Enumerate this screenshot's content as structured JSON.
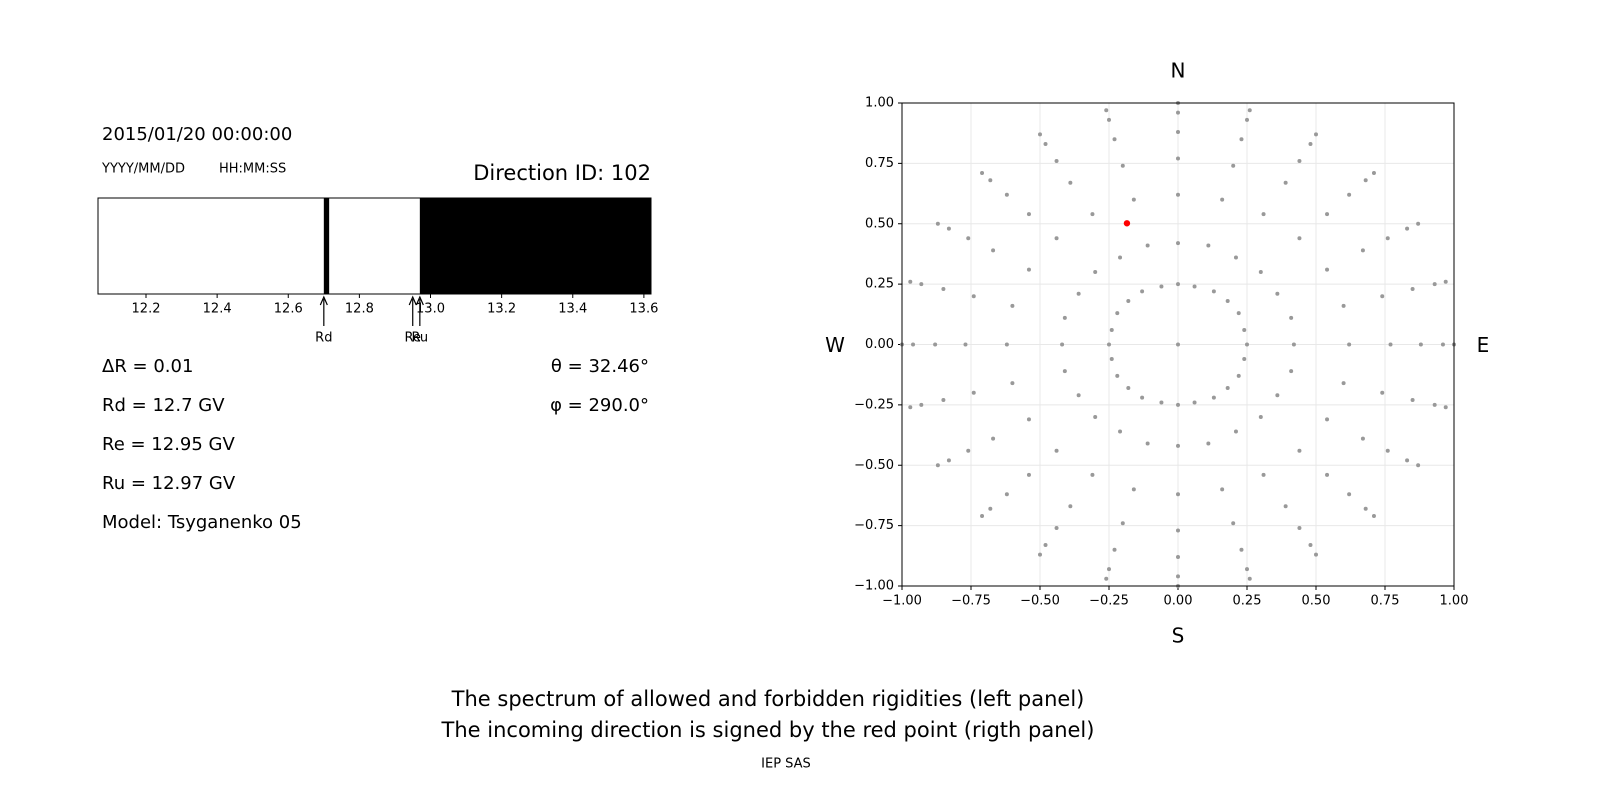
{
  "header": {
    "datetime": "2015/01/20 00:00:00",
    "date_format": "YYYY/MM/DD",
    "time_format": "HH:MM:SS",
    "direction": "Direction ID: 102"
  },
  "info": {
    "left": [
      "ΔR = 0.01",
      "Rd = 12.7 GV",
      "Re = 12.95 GV",
      "Ru = 12.97 GV",
      "Model: Tsyganenko 05"
    ],
    "right": [
      "θ = 32.46°",
      "φ = 290.0°"
    ]
  },
  "chart_data": [
    {
      "type": "broken_bar",
      "xlim": [
        12.065,
        13.62
      ],
      "xticks": [
        12.2,
        12.4,
        12.6,
        12.8,
        {
          "value": 13,
          "label": "13.0"
        },
        13.2,
        13.4,
        13.6
      ],
      "color": "#000000",
      "segments": [
        {
          "start": 12.7,
          "end": 12.715
        },
        {
          "start": 12.97,
          "end": 13.62
        }
      ],
      "markers": [
        {
          "label": "Rd",
          "value": 12.7
        },
        {
          "label": "Re",
          "value": 12.95
        },
        {
          "label": "Ru",
          "value": 12.97
        }
      ]
    },
    {
      "type": "scatter",
      "xlim": [
        -1,
        1
      ],
      "ylim": [
        -1,
        1
      ],
      "grid": true,
      "xticks": [
        {
          "value": -1,
          "label": "−1.00"
        },
        {
          "value": -0.75,
          "label": "−0.75"
        },
        {
          "value": -0.5,
          "label": "−0.50"
        },
        {
          "value": -0.25,
          "label": "−0.25"
        },
        {
          "value": 0,
          "label": "0.00"
        },
        {
          "value": 0.25,
          "label": "0.25"
        },
        {
          "value": 0.5,
          "label": "0.50"
        },
        {
          "value": 0.75,
          "label": "0.75"
        },
        {
          "value": 1,
          "label": "1.00"
        }
      ],
      "yticks": [
        {
          "value": -1,
          "label": "−1.00"
        },
        {
          "value": -0.75,
          "label": "−0.75"
        },
        {
          "value": -0.5,
          "label": "−0.50"
        },
        {
          "value": -0.25,
          "label": "−0.25"
        },
        {
          "value": 0,
          "label": "0.00"
        },
        {
          "value": 0.25,
          "label": "0.25"
        },
        {
          "value": 0.5,
          "label": "0.50"
        },
        {
          "value": 0.75,
          "label": "0.75"
        },
        {
          "value": 1,
          "label": "1.00"
        }
      ],
      "compass": {
        "north": "N",
        "south": "S",
        "west": "W",
        "east": "E"
      },
      "series": [
        {
          "color": "#999999",
          "x": [
            0,
            0.25,
            0.24,
            0.22,
            0.18,
            0.13,
            0.06,
            0,
            -0.06,
            -0.13,
            -0.18,
            -0.22,
            -0.24,
            -0.25,
            -0.24,
            -0.22,
            -0.18,
            -0.13,
            -0.06,
            0,
            0.06,
            0.13,
            0.18,
            0.22,
            0.24,
            0.42,
            0.41,
            0.36,
            0.3,
            0.21,
            0.11,
            0,
            -0.11,
            -0.21,
            -0.3,
            -0.36,
            -0.41,
            -0.42,
            -0.41,
            -0.36,
            -0.3,
            -0.21,
            -0.11,
            0,
            0.11,
            0.21,
            0.3,
            0.36,
            0.41,
            0.62,
            0.6,
            0.54,
            0.44,
            0.31,
            0.16,
            0,
            -0.16,
            -0.31,
            -0.44,
            -0.54,
            -0.6,
            -0.62,
            -0.6,
            -0.54,
            -0.44,
            -0.31,
            -0.16,
            0,
            0.16,
            0.31,
            0.44,
            0.54,
            0.6,
            0.77,
            0.74,
            0.67,
            0.54,
            0.39,
            0.2,
            0,
            -0.2,
            -0.39,
            -0.54,
            -0.67,
            -0.74,
            -0.77,
            -0.74,
            -0.67,
            -0.54,
            -0.39,
            -0.2,
            0,
            0.2,
            0.39,
            0.54,
            0.67,
            0.74,
            0.88,
            0.85,
            0.76,
            0.62,
            0.44,
            0.23,
            0,
            -0.23,
            -0.44,
            -0.62,
            -0.76,
            -0.85,
            -0.88,
            -0.85,
            -0.76,
            -0.62,
            -0.44,
            -0.23,
            0,
            0.23,
            0.44,
            0.62,
            0.76,
            0.85,
            0.96,
            0.93,
            0.83,
            0.68,
            0.48,
            0.25,
            0,
            -0.25,
            -0.48,
            -0.68,
            -0.83,
            -0.93,
            -0.96,
            -0.93,
            -0.83,
            -0.68,
            -0.48,
            -0.25,
            0,
            0.25,
            0.48,
            0.68,
            0.83,
            0.93,
            1,
            0.97,
            0.87,
            0.71,
            0.5,
            0.26,
            0,
            -0.26,
            -0.5,
            -0.71,
            -0.87,
            -0.97,
            -1,
            -0.97,
            -0.87,
            -0.71,
            -0.5,
            -0.26,
            0,
            0.26,
            0.5,
            0.71,
            0.87,
            0.97
          ],
          "y": [
            0,
            0,
            0.06,
            0.13,
            0.18,
            0.22,
            0.24,
            0.25,
            0.24,
            0.22,
            0.18,
            0.13,
            0.06,
            0,
            -0.06,
            -0.13,
            -0.18,
            -0.22,
            -0.24,
            -0.25,
            -0.24,
            -0.22,
            -0.18,
            -0.13,
            -0.06,
            0,
            0.11,
            0.21,
            0.3,
            0.36,
            0.41,
            0.42,
            0.41,
            0.36,
            0.3,
            0.21,
            0.11,
            0,
            -0.11,
            -0.21,
            -0.3,
            -0.36,
            -0.41,
            -0.42,
            -0.41,
            -0.36,
            -0.3,
            -0.21,
            -0.11,
            0,
            0.16,
            0.31,
            0.44,
            0.54,
            0.6,
            0.62,
            0.6,
            0.54,
            0.44,
            0.31,
            0.16,
            0,
            -0.16,
            -0.31,
            -0.44,
            -0.54,
            -0.6,
            -0.62,
            -0.6,
            -0.54,
            -0.44,
            -0.31,
            -0.16,
            0,
            0.2,
            0.39,
            0.54,
            0.67,
            0.74,
            0.77,
            0.74,
            0.67,
            0.54,
            0.39,
            0.2,
            0,
            -0.2,
            -0.39,
            -0.54,
            -0.67,
            -0.74,
            -0.77,
            -0.74,
            -0.67,
            -0.54,
            -0.39,
            -0.2,
            0,
            0.23,
            0.44,
            0.62,
            0.76,
            0.85,
            0.88,
            0.85,
            0.76,
            0.62,
            0.44,
            0.23,
            0,
            -0.23,
            -0.44,
            -0.62,
            -0.76,
            -0.85,
            -0.88,
            -0.85,
            -0.76,
            -0.62,
            -0.44,
            -0.23,
            0,
            0.25,
            0.48,
            0.68,
            0.83,
            0.93,
            0.96,
            0.93,
            0.83,
            0.68,
            0.48,
            0.25,
            0,
            -0.25,
            -0.48,
            -0.68,
            -0.83,
            -0.93,
            -0.96,
            -0.93,
            -0.83,
            -0.68,
            -0.48,
            -0.25,
            0,
            0.26,
            0.5,
            0.71,
            0.87,
            0.97,
            1,
            0.97,
            0.87,
            0.71,
            0.5,
            0.26,
            0,
            -0.26,
            -0.5,
            -0.71,
            -0.87,
            -0.97,
            -1,
            -0.97,
            -0.87,
            -0.71,
            -0.5,
            -0.26
          ]
        },
        {
          "color": "#ff0000",
          "x": [
            -0.185
          ],
          "y": [
            0.502
          ]
        }
      ]
    }
  ],
  "caption": [
    "The spectrum of allowed and forbidden rigidities (left panel)",
    "The incoming direction is signed by the red point (rigth panel)"
  ],
  "footer": "IEP SAS"
}
